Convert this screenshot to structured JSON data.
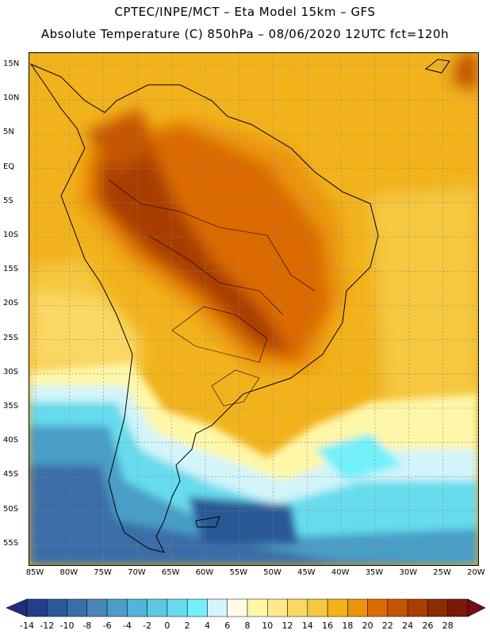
{
  "header": {
    "title_line1": "CPTEC/INPE/MCT –  Eta Model 15km – GFS",
    "title_line2": "Absolute Temperature (C) 850hPa – 08/06/2020 12UTC fct=120h"
  },
  "axes": {
    "lat_labels": [
      "15N",
      "10N",
      "5N",
      "EQ",
      "5S",
      "10S",
      "15S",
      "20S",
      "25S",
      "30S",
      "35S",
      "40S",
      "45S",
      "50S",
      "55S"
    ],
    "lon_labels": [
      "85W",
      "80W",
      "75W",
      "70W",
      "65W",
      "60W",
      "55W",
      "50W",
      "45W",
      "40W",
      "35W",
      "30W",
      "25W",
      "20W"
    ]
  },
  "colorbar": {
    "labels": [
      "-14",
      "-12",
      "-10",
      "-8",
      "-6",
      "-4",
      "-2",
      "0",
      "2",
      "4",
      "6",
      "8",
      "10",
      "12",
      "14",
      "16",
      "18",
      "20",
      "22",
      "24",
      "26",
      "28"
    ],
    "colors": [
      "#223f8a",
      "#2c5896",
      "#3a6ea8",
      "#4a86b8",
      "#4a9ec8",
      "#52b4d8",
      "#5cc8e4",
      "#66dcee",
      "#72f0fa",
      "#d2f4fa",
      "#fffbe6",
      "#fff7a8",
      "#ffe98a",
      "#fad864",
      "#f5c840",
      "#f2b21c",
      "#eb940a",
      "#db6a00",
      "#c55400",
      "#a93e00",
      "#8c2c00",
      "#7a1a08"
    ],
    "under_color": "#1d2f7a",
    "over_color": "#7a0a18"
  }
}
